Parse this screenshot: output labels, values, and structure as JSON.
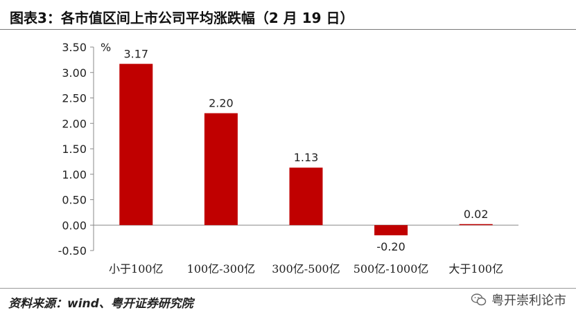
{
  "title": "图表3：各市值区间上市公司平均涨跌幅（2 月 19 日）",
  "source": "资料来源：wind、粤开证券研究院",
  "watermark": {
    "icon": "wechat-icon",
    "text": "粤开崇利论市"
  },
  "chart_data": {
    "type": "bar",
    "categories": [
      "小于100亿",
      "100亿-300亿",
      "300亿-500亿",
      "500亿-1000亿",
      "大于100亿"
    ],
    "values": [
      3.17,
      2.2,
      1.13,
      -0.2,
      0.02
    ],
    "value_labels": [
      "3.17",
      "2.20",
      "1.13",
      "-0.20",
      "0.02"
    ],
    "unit_label": "%",
    "ylim": [
      -0.5,
      3.5
    ],
    "yticks": [
      "3.50",
      "3.00",
      "2.50",
      "2.00",
      "1.50",
      "1.00",
      "0.50",
      "0.00",
      "-0.50"
    ],
    "ytick_values": [
      3.5,
      3.0,
      2.5,
      2.0,
      1.5,
      1.0,
      0.5,
      0.0,
      -0.5
    ],
    "bar_color": "#C00000",
    "grid": false,
    "legend": "none"
  }
}
